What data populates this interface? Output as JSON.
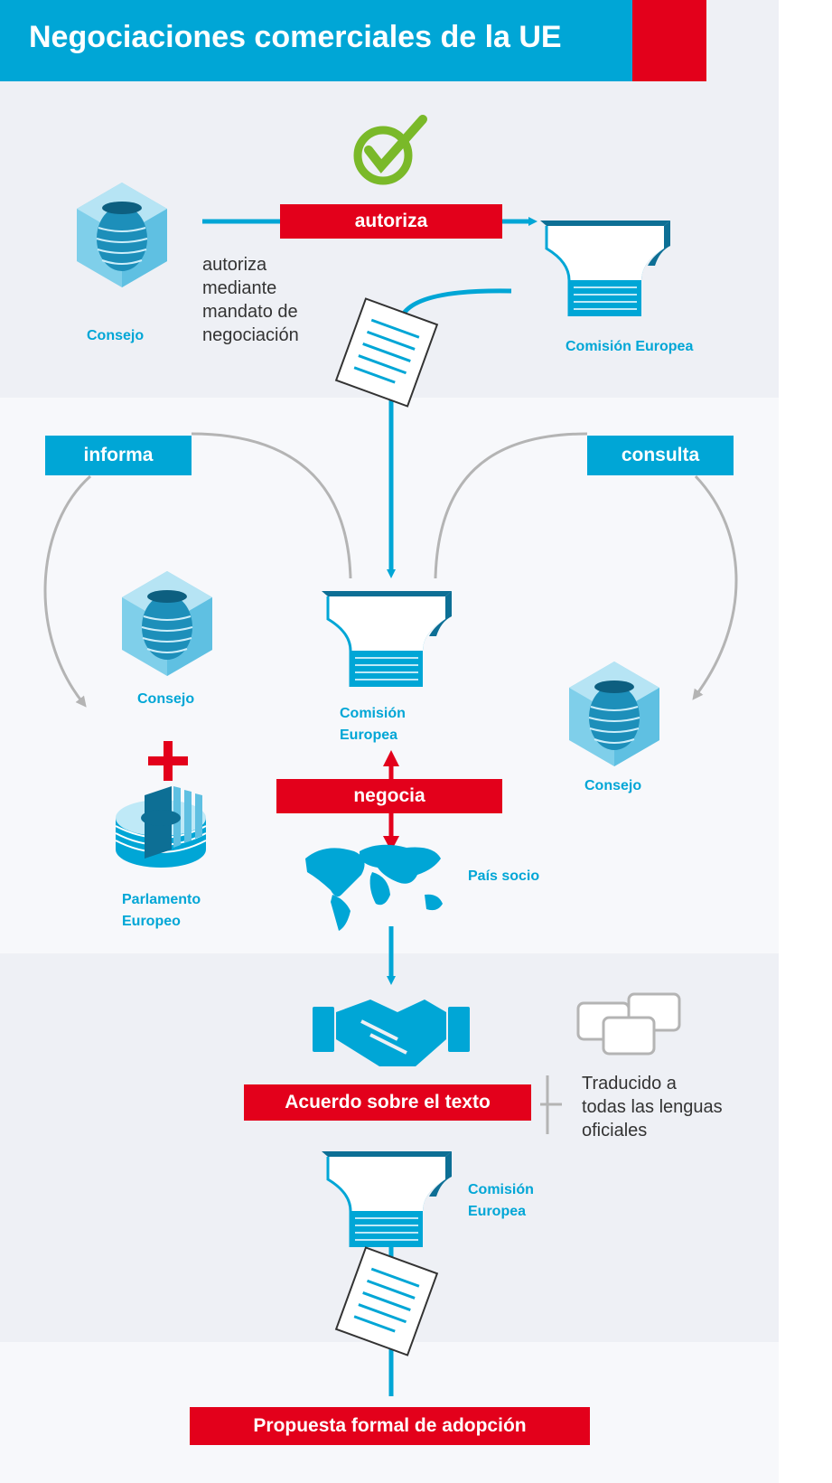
{
  "title": "Negociaciones comerciales de la UE",
  "colors": {
    "blue": "#00a6d6",
    "red": "#e3001b",
    "green": "#7ab929",
    "grey": "#b4b4b4",
    "band": "#eef0f5"
  },
  "labels": {
    "autoriza": "autoriza",
    "informa": "informa",
    "consulta": "consulta",
    "negocia": "negocia",
    "acuerdo": "Acuerdo sobre el texto",
    "propuesta": "Propuesta formal de adopción"
  },
  "captions": {
    "consejo_top": "Consejo",
    "comision_top": "Comisión Europea",
    "consejo_mid": "Consejo",
    "comision_mid_1": "Comisión",
    "comision_mid_2": "Europea",
    "consejo_right": "Consejo",
    "parlamento_1": "Parlamento",
    "parlamento_2": "Europeo",
    "pais_socio": "País socio",
    "comision_bottom_1": "Comisión",
    "comision_bottom_2": "Europea"
  },
  "mandate_text": [
    "autoriza",
    "mediante",
    "mandato de",
    "negociación"
  ],
  "translated_text": [
    "Traducido a",
    "todas las lenguas",
    "oficiales"
  ],
  "icons": [
    "check-icon",
    "council-icon",
    "commission-icon",
    "document-icon",
    "parliament-icon",
    "plus-icon",
    "world-map-icon",
    "handshake-icon",
    "speech-bubbles-icon"
  ]
}
